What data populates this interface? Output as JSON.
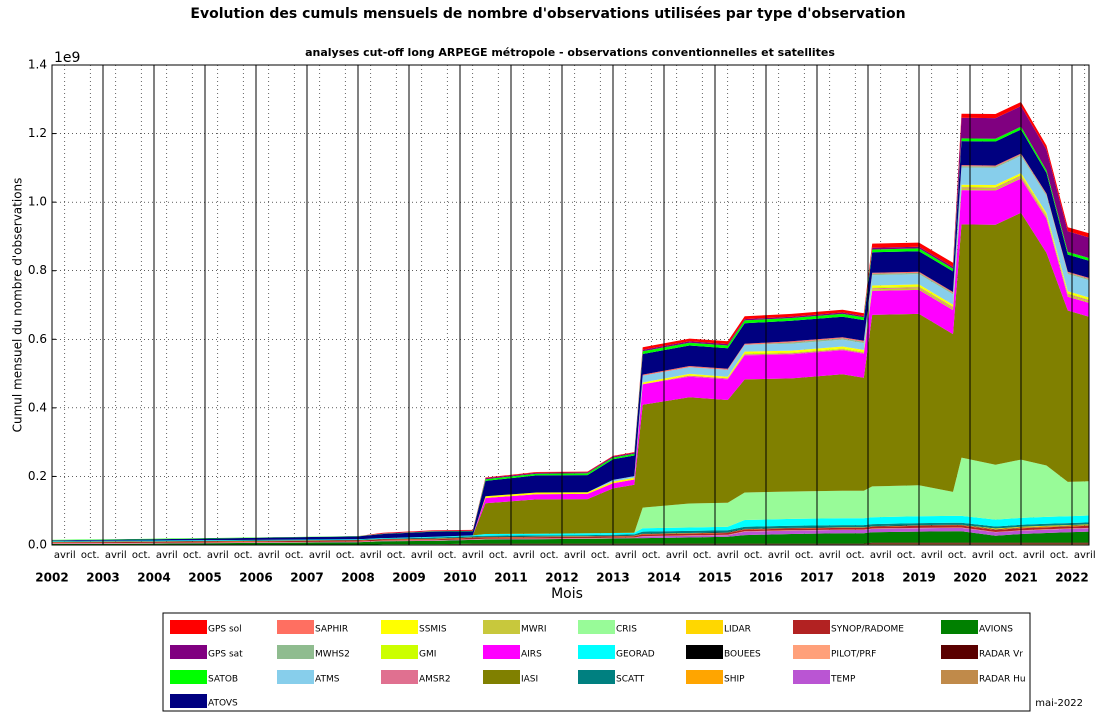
{
  "chart_data": {
    "type": "stacked_area",
    "title": "Evolution des cumuls mensuels de nombre d'observations utilisées par type d'observation",
    "subtitle": "analyses cut-off long ARPEGE métropole - observations conventionnelles et satellites",
    "y_label": "Cumul mensuel du nombre d'observations",
    "y_offset_label": "1e9",
    "x_label": "Mois",
    "annotation": "mai-2022",
    "ylim": [
      0,
      1.4
    ],
    "yticks": [
      {
        "value": 0,
        "label": "0.0"
      },
      {
        "value": 0.2,
        "label": "0.2"
      },
      {
        "value": 0.4,
        "label": "0.4"
      },
      {
        "value": 0.6,
        "label": "0.6"
      },
      {
        "value": 0.8,
        "label": "0.8"
      },
      {
        "value": 1.0,
        "label": "1.0"
      },
      {
        "value": 1.2,
        "label": "1.2"
      },
      {
        "value": 1.4,
        "label": "1.4"
      }
    ],
    "xlim": [
      "2002-01",
      "2022-05"
    ],
    "years": [
      "2002",
      "2003",
      "2004",
      "2005",
      "2006",
      "2007",
      "2008",
      "2009",
      "2010",
      "2011",
      "2012",
      "2013",
      "2014",
      "2015",
      "2016",
      "2017",
      "2018",
      "2019",
      "2020",
      "2021",
      "2022"
    ],
    "xticks": [
      {
        "value": "2002-04",
        "label": "avril"
      },
      {
        "value": "2002-10",
        "label": "oct."
      },
      {
        "value": "2003-04",
        "label": "avril"
      },
      {
        "value": "2003-10",
        "label": "oct."
      },
      {
        "value": "2004-04",
        "label": "avril"
      },
      {
        "value": "2004-10",
        "label": "oct."
      },
      {
        "value": "2005-04",
        "label": "avril"
      },
      {
        "value": "2005-10",
        "label": "oct."
      },
      {
        "value": "2006-04",
        "label": "avril"
      },
      {
        "value": "2006-10",
        "label": "oct."
      },
      {
        "value": "2007-04",
        "label": "avril"
      },
      {
        "value": "2007-10",
        "label": "oct."
      },
      {
        "value": "2008-04",
        "label": "avril"
      },
      {
        "value": "2008-10",
        "label": "oct."
      },
      {
        "value": "2009-04",
        "label": "avril"
      },
      {
        "value": "2009-10",
        "label": "oct."
      },
      {
        "value": "2010-04",
        "label": "avril"
      },
      {
        "value": "2010-10",
        "label": "oct."
      },
      {
        "value": "2011-04",
        "label": "avril"
      },
      {
        "value": "2011-10",
        "label": "oct."
      },
      {
        "value": "2012-04",
        "label": "avril"
      },
      {
        "value": "2012-10",
        "label": "oct."
      },
      {
        "value": "2013-04",
        "label": "avril"
      },
      {
        "value": "2013-10",
        "label": "oct."
      },
      {
        "value": "2014-04",
        "label": "avril"
      },
      {
        "value": "2014-10",
        "label": "oct."
      },
      {
        "value": "2015-04",
        "label": "avril"
      },
      {
        "value": "2015-10",
        "label": "oct."
      },
      {
        "value": "2016-04",
        "label": "avril"
      },
      {
        "value": "2016-10",
        "label": "oct."
      },
      {
        "value": "2017-04",
        "label": "avril"
      },
      {
        "value": "2017-10",
        "label": "oct."
      },
      {
        "value": "2018-04",
        "label": "avril"
      },
      {
        "value": "2018-10",
        "label": "oct."
      },
      {
        "value": "2019-04",
        "label": "avril"
      },
      {
        "value": "2019-10",
        "label": "oct."
      },
      {
        "value": "2020-04",
        "label": "avril"
      },
      {
        "value": "2020-10",
        "label": "oct."
      },
      {
        "value": "2021-04",
        "label": "avril"
      },
      {
        "value": "2021-10",
        "label": "oct."
      },
      {
        "value": "2022-04",
        "label": "avril"
      }
    ],
    "grid": true,
    "x": [
      "2002-01",
      "2004-01",
      "2006-01",
      "2008-01",
      "2008-07",
      "2009-07",
      "2010-04",
      "2010-07",
      "2011-07",
      "2012-07",
      "2013-01",
      "2013-06",
      "2013-08",
      "2014-07",
      "2015-04",
      "2015-08",
      "2016-07",
      "2017-07",
      "2017-12",
      "2018-02",
      "2019-01",
      "2019-09",
      "2019-11",
      "2020-07",
      "2021-01",
      "2021-07",
      "2021-12",
      "2022-05"
    ],
    "series": [
      {
        "name": "GPS sol",
        "color": "#ff0000",
        "values": [
          0,
          0,
          0,
          0,
          0.002,
          0.002,
          0.002,
          0.002,
          0.002,
          0.002,
          0.002,
          0.002,
          0.008,
          0.008,
          0.008,
          0.008,
          0.008,
          0.008,
          0.008,
          0.012,
          0.012,
          0.012,
          0.012,
          0.012,
          0.012,
          0.012,
          0.012,
          0.012
        ]
      },
      {
        "name": "GPS sat",
        "color": "#800080",
        "values": [
          0,
          0,
          0,
          0,
          0.001,
          0.001,
          0.001,
          0.003,
          0.003,
          0.003,
          0.003,
          0.003,
          0.004,
          0.004,
          0.004,
          0.004,
          0.004,
          0.004,
          0.004,
          0.005,
          0.005,
          0.005,
          0.06,
          0.06,
          0.06,
          0.06,
          0.06,
          0.06
        ]
      },
      {
        "name": "SATOB",
        "color": "#00ff00",
        "values": [
          0.001,
          0.001,
          0.001,
          0.001,
          0.001,
          0.001,
          0.001,
          0.005,
          0.005,
          0.005,
          0.005,
          0.005,
          0.008,
          0.008,
          0.008,
          0.008,
          0.008,
          0.008,
          0.008,
          0.008,
          0.008,
          0.008,
          0.008,
          0.008,
          0.008,
          0.008,
          0.008,
          0.008
        ]
      },
      {
        "name": "ATOVS",
        "color": "#000080",
        "values": [
          0.002,
          0.004,
          0.006,
          0.008,
          0.012,
          0.015,
          0.012,
          0.045,
          0.05,
          0.05,
          0.06,
          0.06,
          0.06,
          0.06,
          0.06,
          0.06,
          0.06,
          0.06,
          0.06,
          0.06,
          0.06,
          0.06,
          0.07,
          0.07,
          0.07,
          0.06,
          0.05,
          0.05
        ]
      },
      {
        "name": "SAPHIR",
        "color": "#ff6f61",
        "values": [
          0,
          0,
          0,
          0,
          0,
          0,
          0,
          0,
          0,
          0,
          0,
          0,
          0.003,
          0.003,
          0.003,
          0.003,
          0.003,
          0.003,
          0.003,
          0.003,
          0.003,
          0.003,
          0.003,
          0.003,
          0.003,
          0.003,
          0.003,
          0.003
        ]
      },
      {
        "name": "MWHS2",
        "color": "#8fbc8f",
        "values": [
          0,
          0,
          0,
          0,
          0,
          0,
          0,
          0,
          0,
          0,
          0,
          0,
          0,
          0,
          0,
          0,
          0.004,
          0.004,
          0.004,
          0.004,
          0.004,
          0.004,
          0.004,
          0.004,
          0.004,
          0.004,
          0.004,
          0.004
        ]
      },
      {
        "name": "ATMS",
        "color": "#87ceeb",
        "values": [
          0,
          0,
          0,
          0,
          0,
          0,
          0,
          0,
          0,
          0,
          0.005,
          0.005,
          0.02,
          0.02,
          0.02,
          0.02,
          0.02,
          0.02,
          0.02,
          0.03,
          0.03,
          0.03,
          0.05,
          0.05,
          0.05,
          0.05,
          0.05,
          0.05
        ]
      },
      {
        "name": "SSMIS",
        "color": "#ffff00",
        "values": [
          0,
          0,
          0,
          0,
          0,
          0,
          0,
          0.005,
          0.005,
          0.005,
          0.005,
          0.005,
          0.005,
          0.005,
          0.005,
          0.005,
          0.005,
          0.005,
          0.005,
          0.005,
          0.005,
          0.005,
          0.005,
          0.005,
          0.005,
          0.005,
          0.005,
          0.005
        ]
      },
      {
        "name": "GMI",
        "color": "#ccff00",
        "values": [
          0,
          0,
          0,
          0,
          0,
          0,
          0,
          0,
          0,
          0,
          0,
          0,
          0,
          0,
          0,
          0.003,
          0.003,
          0.003,
          0.003,
          0.003,
          0.003,
          0.003,
          0.003,
          0.003,
          0.003,
          0.003,
          0.003,
          0.003
        ]
      },
      {
        "name": "AMSR2",
        "color": "#e07090",
        "values": [
          0,
          0,
          0,
          0,
          0,
          0,
          0,
          0,
          0,
          0,
          0,
          0,
          0,
          0.003,
          0.003,
          0.003,
          0.003,
          0.003,
          0.003,
          0.003,
          0.003,
          0.003,
          0.003,
          0.003,
          0.003,
          0.003,
          0.003,
          0.003
        ]
      },
      {
        "name": "MWRI",
        "color": "#c8c83c",
        "values": [
          0,
          0,
          0,
          0,
          0,
          0,
          0,
          0,
          0,
          0,
          0,
          0,
          0,
          0,
          0,
          0,
          0,
          0,
          0,
          0.005,
          0.005,
          0.005,
          0.005,
          0.005,
          0.005,
          0.005,
          0.005,
          0.005
        ]
      },
      {
        "name": "AIRS",
        "color": "#ff00ff",
        "values": [
          0,
          0,
          0,
          0,
          0,
          0,
          0,
          0.015,
          0.015,
          0.015,
          0.015,
          0.015,
          0.06,
          0.06,
          0.06,
          0.07,
          0.07,
          0.07,
          0.07,
          0.07,
          0.07,
          0.07,
          0.1,
          0.1,
          0.1,
          0.1,
          0.04,
          0.04
        ]
      },
      {
        "name": "IASI",
        "color": "#808000",
        "values": [
          0,
          0,
          0,
          0,
          0,
          0,
          0,
          0.09,
          0.1,
          0.1,
          0.13,
          0.14,
          0.3,
          0.31,
          0.3,
          0.33,
          0.33,
          0.34,
          0.33,
          0.5,
          0.5,
          0.46,
          0.68,
          0.7,
          0.72,
          0.62,
          0.5,
          0.48
        ]
      },
      {
        "name": "CRIS",
        "color": "#98fb98",
        "values": [
          0,
          0,
          0,
          0,
          0,
          0,
          0,
          0,
          0,
          0,
          0,
          0,
          0.06,
          0.07,
          0.07,
          0.08,
          0.08,
          0.08,
          0.08,
          0.09,
          0.09,
          0.07,
          0.17,
          0.16,
          0.17,
          0.15,
          0.1,
          0.1
        ]
      },
      {
        "name": "GEORAD",
        "color": "#00ffff",
        "values": [
          0.002,
          0.002,
          0.002,
          0.002,
          0.002,
          0.002,
          0.002,
          0.005,
          0.005,
          0.005,
          0.005,
          0.005,
          0.01,
          0.01,
          0.01,
          0.02,
          0.02,
          0.02,
          0.02,
          0.02,
          0.02,
          0.02,
          0.02,
          0.02,
          0.02,
          0.02,
          0.02,
          0.02
        ]
      },
      {
        "name": "SCATT",
        "color": "#008080",
        "values": [
          0,
          0,
          0,
          0,
          0,
          0.003,
          0.003,
          0.003,
          0.003,
          0.003,
          0.003,
          0.003,
          0.006,
          0.006,
          0.006,
          0.006,
          0.006,
          0.006,
          0.006,
          0.006,
          0.006,
          0.006,
          0.006,
          0.006,
          0.006,
          0.006,
          0.006,
          0.006
        ]
      },
      {
        "name": "LIDAR",
        "color": "#ffd700",
        "values": [
          0,
          0,
          0,
          0,
          0,
          0,
          0,
          0,
          0,
          0,
          0,
          0,
          0,
          0,
          0,
          0,
          0,
          0,
          0,
          0,
          0,
          0,
          0,
          0.002,
          0.002,
          0.002,
          0.002,
          0.002
        ]
      },
      {
        "name": "BOUEES",
        "color": "#000000",
        "values": [
          0.001,
          0.001,
          0.001,
          0.001,
          0.001,
          0.001,
          0.001,
          0.001,
          0.001,
          0.001,
          0.001,
          0.001,
          0.001,
          0.001,
          0.001,
          0.001,
          0.001,
          0.001,
          0.001,
          0.001,
          0.001,
          0.001,
          0.001,
          0.001,
          0.001,
          0.001,
          0.001,
          0.001
        ]
      },
      {
        "name": "SHIP",
        "color": "#ffa500",
        "values": [
          0.001,
          0.001,
          0.001,
          0.001,
          0.001,
          0.001,
          0.001,
          0.001,
          0.001,
          0.001,
          0.001,
          0.001,
          0.001,
          0.001,
          0.001,
          0.001,
          0.001,
          0.001,
          0.001,
          0.001,
          0.001,
          0.001,
          0.001,
          0.001,
          0.001,
          0.001,
          0.001,
          0.001
        ]
      },
      {
        "name": "SYNOP/RADOME",
        "color": "#b22222",
        "values": [
          0.003,
          0.003,
          0.003,
          0.003,
          0.003,
          0.003,
          0.004,
          0.004,
          0.004,
          0.004,
          0.004,
          0.004,
          0.005,
          0.005,
          0.005,
          0.005,
          0.005,
          0.005,
          0.005,
          0.005,
          0.006,
          0.006,
          0.006,
          0.006,
          0.006,
          0.006,
          0.006,
          0.006
        ]
      },
      {
        "name": "PILOT/PRF",
        "color": "#ffa07a",
        "values": [
          0.001,
          0.001,
          0.001,
          0.001,
          0.001,
          0.001,
          0.001,
          0.001,
          0.001,
          0.001,
          0.001,
          0.001,
          0.001,
          0.001,
          0.001,
          0.001,
          0.001,
          0.001,
          0.001,
          0.001,
          0.001,
          0.001,
          0.001,
          0.001,
          0.001,
          0.001,
          0.001,
          0.001
        ]
      },
      {
        "name": "TEMP",
        "color": "#ba55d3",
        "values": [
          0.001,
          0.001,
          0.001,
          0.001,
          0.001,
          0.001,
          0.001,
          0.001,
          0.001,
          0.001,
          0.001,
          0.001,
          0.005,
          0.005,
          0.005,
          0.01,
          0.01,
          0.01,
          0.01,
          0.01,
          0.01,
          0.01,
          0.01,
          0.01,
          0.01,
          0.01,
          0.01,
          0.01
        ]
      },
      {
        "name": "AVIONS",
        "color": "#008000",
        "values": [
          0.003,
          0.004,
          0.006,
          0.008,
          0.009,
          0.01,
          0.011,
          0.012,
          0.013,
          0.014,
          0.015,
          0.016,
          0.016,
          0.018,
          0.02,
          0.025,
          0.028,
          0.03,
          0.03,
          0.03,
          0.032,
          0.033,
          0.033,
          0.02,
          0.025,
          0.028,
          0.03,
          0.032
        ]
      },
      {
        "name": "RADAR Vr",
        "color": "#5a0000",
        "values": [
          0,
          0,
          0,
          0,
          0,
          0,
          0.002,
          0.002,
          0.002,
          0.002,
          0.002,
          0.002,
          0.002,
          0.002,
          0.002,
          0.002,
          0.002,
          0.002,
          0.002,
          0.003,
          0.003,
          0.003,
          0.003,
          0.003,
          0.003,
          0.003,
          0.003,
          0.003
        ]
      },
      {
        "name": "RADAR Hu",
        "color": "#c08a4a",
        "values": [
          0,
          0,
          0,
          0,
          0.002,
          0.002,
          0.002,
          0.002,
          0.002,
          0.002,
          0.002,
          0.002,
          0.002,
          0.002,
          0.002,
          0.002,
          0.002,
          0.002,
          0.002,
          0.004,
          0.004,
          0.004,
          0.004,
          0.004,
          0.004,
          0.004,
          0.004,
          0.004
        ]
      }
    ]
  }
}
